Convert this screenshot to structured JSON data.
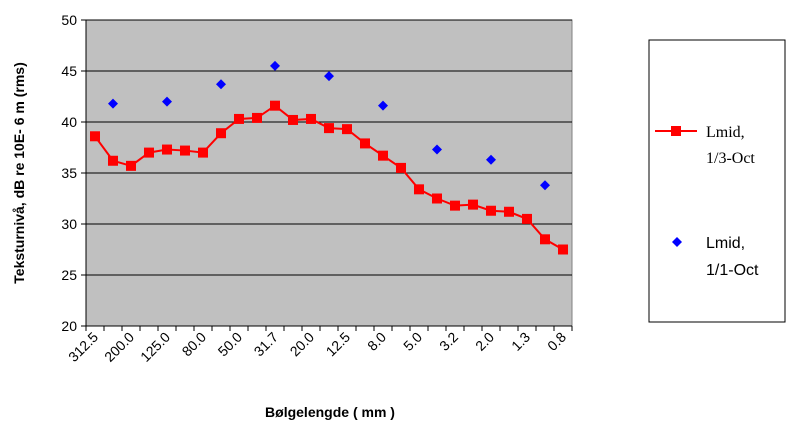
{
  "chart_data": {
    "type": "line",
    "title": "",
    "xlabel": "Bølgelengde  ( mm )",
    "ylabel": "Teksturnivå, dB re 10E- 6 m (rms)",
    "ylim": [
      20,
      50
    ],
    "yticks": [
      "20",
      "25",
      "30",
      "35",
      "40",
      "45",
      "50"
    ],
    "x_tick_labels": [
      "312.5",
      "200.0",
      "125.0",
      "80.0",
      "50.0",
      "31.7",
      "20.0",
      "12.5",
      "8.0",
      "5.0",
      "3.2",
      "2.0",
      "1.3",
      "0.8"
    ],
    "categories": [
      "315",
      "250",
      "200",
      "160",
      "125",
      "100",
      "80",
      "63",
      "50",
      "40",
      "31.5",
      "25",
      "20",
      "16",
      "12.5",
      "10",
      "8",
      "6.3",
      "5",
      "4",
      "3.2",
      "2.5",
      "2",
      "1.6",
      "1.25",
      "1",
      "0.8"
    ],
    "grid": true,
    "plot_background": "#c0c0c0",
    "legend_position": "right",
    "series": [
      {
        "name_lines": [
          "Lmid,",
          "1/3-Oct"
        ],
        "kind": "line-square",
        "color": "#ff0000",
        "values": [
          38.6,
          36.2,
          35.7,
          37.0,
          37.3,
          37.2,
          37.0,
          38.9,
          40.3,
          40.4,
          41.6,
          40.2,
          40.3,
          39.4,
          39.3,
          37.9,
          36.7,
          35.5,
          33.4,
          32.5,
          31.8,
          31.9,
          31.3,
          31.2,
          30.5,
          28.5,
          27.5
        ]
      },
      {
        "name_lines": [
          "Lmid,",
          "1/1-Oct"
        ],
        "kind": "scatter-diamond",
        "color": "#0000ff",
        "points": [
          {
            "category": "250",
            "value": 41.8
          },
          {
            "category": "125",
            "value": 42.0
          },
          {
            "category": "63",
            "value": 43.7
          },
          {
            "category": "31.5",
            "value": 45.5
          },
          {
            "category": "16",
            "value": 44.5
          },
          {
            "category": "8",
            "value": 41.6
          },
          {
            "category": "4",
            "value": 37.3
          },
          {
            "category": "2",
            "value": 36.3
          },
          {
            "category": "1",
            "value": 33.8
          }
        ]
      }
    ]
  }
}
